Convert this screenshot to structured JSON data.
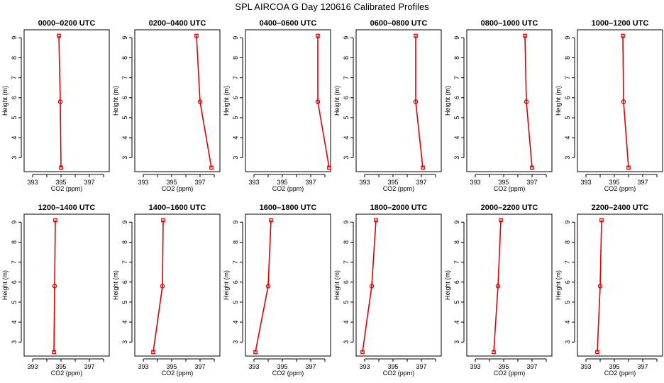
{
  "title": "SPL AIRCOA G  Day 120616  Calibrated Profiles",
  "colors": {
    "profile": "#e00000",
    "axes": "#000000",
    "background": "#ffffff"
  },
  "chart_data": {
    "type": "line",
    "xlabel": "CO2 (ppm)",
    "ylabel": "Height (m)",
    "xlim": [
      392.4,
      398.4
    ],
    "ylim": [
      2.3,
      9.4
    ],
    "x_ticks": [
      393,
      395,
      397
    ],
    "x_minor_ticks": [
      394,
      396,
      398
    ],
    "y_ticks": [
      3,
      4,
      5,
      6,
      7,
      8,
      9
    ],
    "grid": false,
    "heights": [
      9.1,
      5.8,
      2.5
    ],
    "panels": [
      {
        "title": "0000–0200 UTC",
        "co2": [
          394.85,
          394.95,
          395.0
        ]
      },
      {
        "title": "0200–0400 UTC",
        "co2": [
          396.75,
          397.0,
          397.8
        ]
      },
      {
        "title": "0400–0600 UTC",
        "co2": [
          397.5,
          397.5,
          398.3
        ]
      },
      {
        "title": "0600–0800 UTC",
        "co2": [
          396.6,
          396.6,
          397.1
        ]
      },
      {
        "title": "0800–1000 UTC",
        "co2": [
          396.5,
          396.6,
          397.0
        ]
      },
      {
        "title": "1000–1200 UTC",
        "co2": [
          395.6,
          395.65,
          396.0
        ]
      },
      {
        "title": "1200–1400 UTC",
        "co2": [
          394.6,
          394.55,
          394.5
        ]
      },
      {
        "title": "1400–1600 UTC",
        "co2": [
          394.4,
          394.35,
          393.7
        ]
      },
      {
        "title": "1600–1800 UTC",
        "co2": [
          394.2,
          394.0,
          393.1
        ]
      },
      {
        "title": "1800–2000 UTC",
        "co2": [
          393.8,
          393.5,
          392.85
        ]
      },
      {
        "title": "2000–2200 UTC",
        "co2": [
          394.8,
          394.6,
          394.3
        ]
      },
      {
        "title": "2200–2400 UTC",
        "co2": [
          394.1,
          394.0,
          393.8
        ]
      }
    ]
  }
}
